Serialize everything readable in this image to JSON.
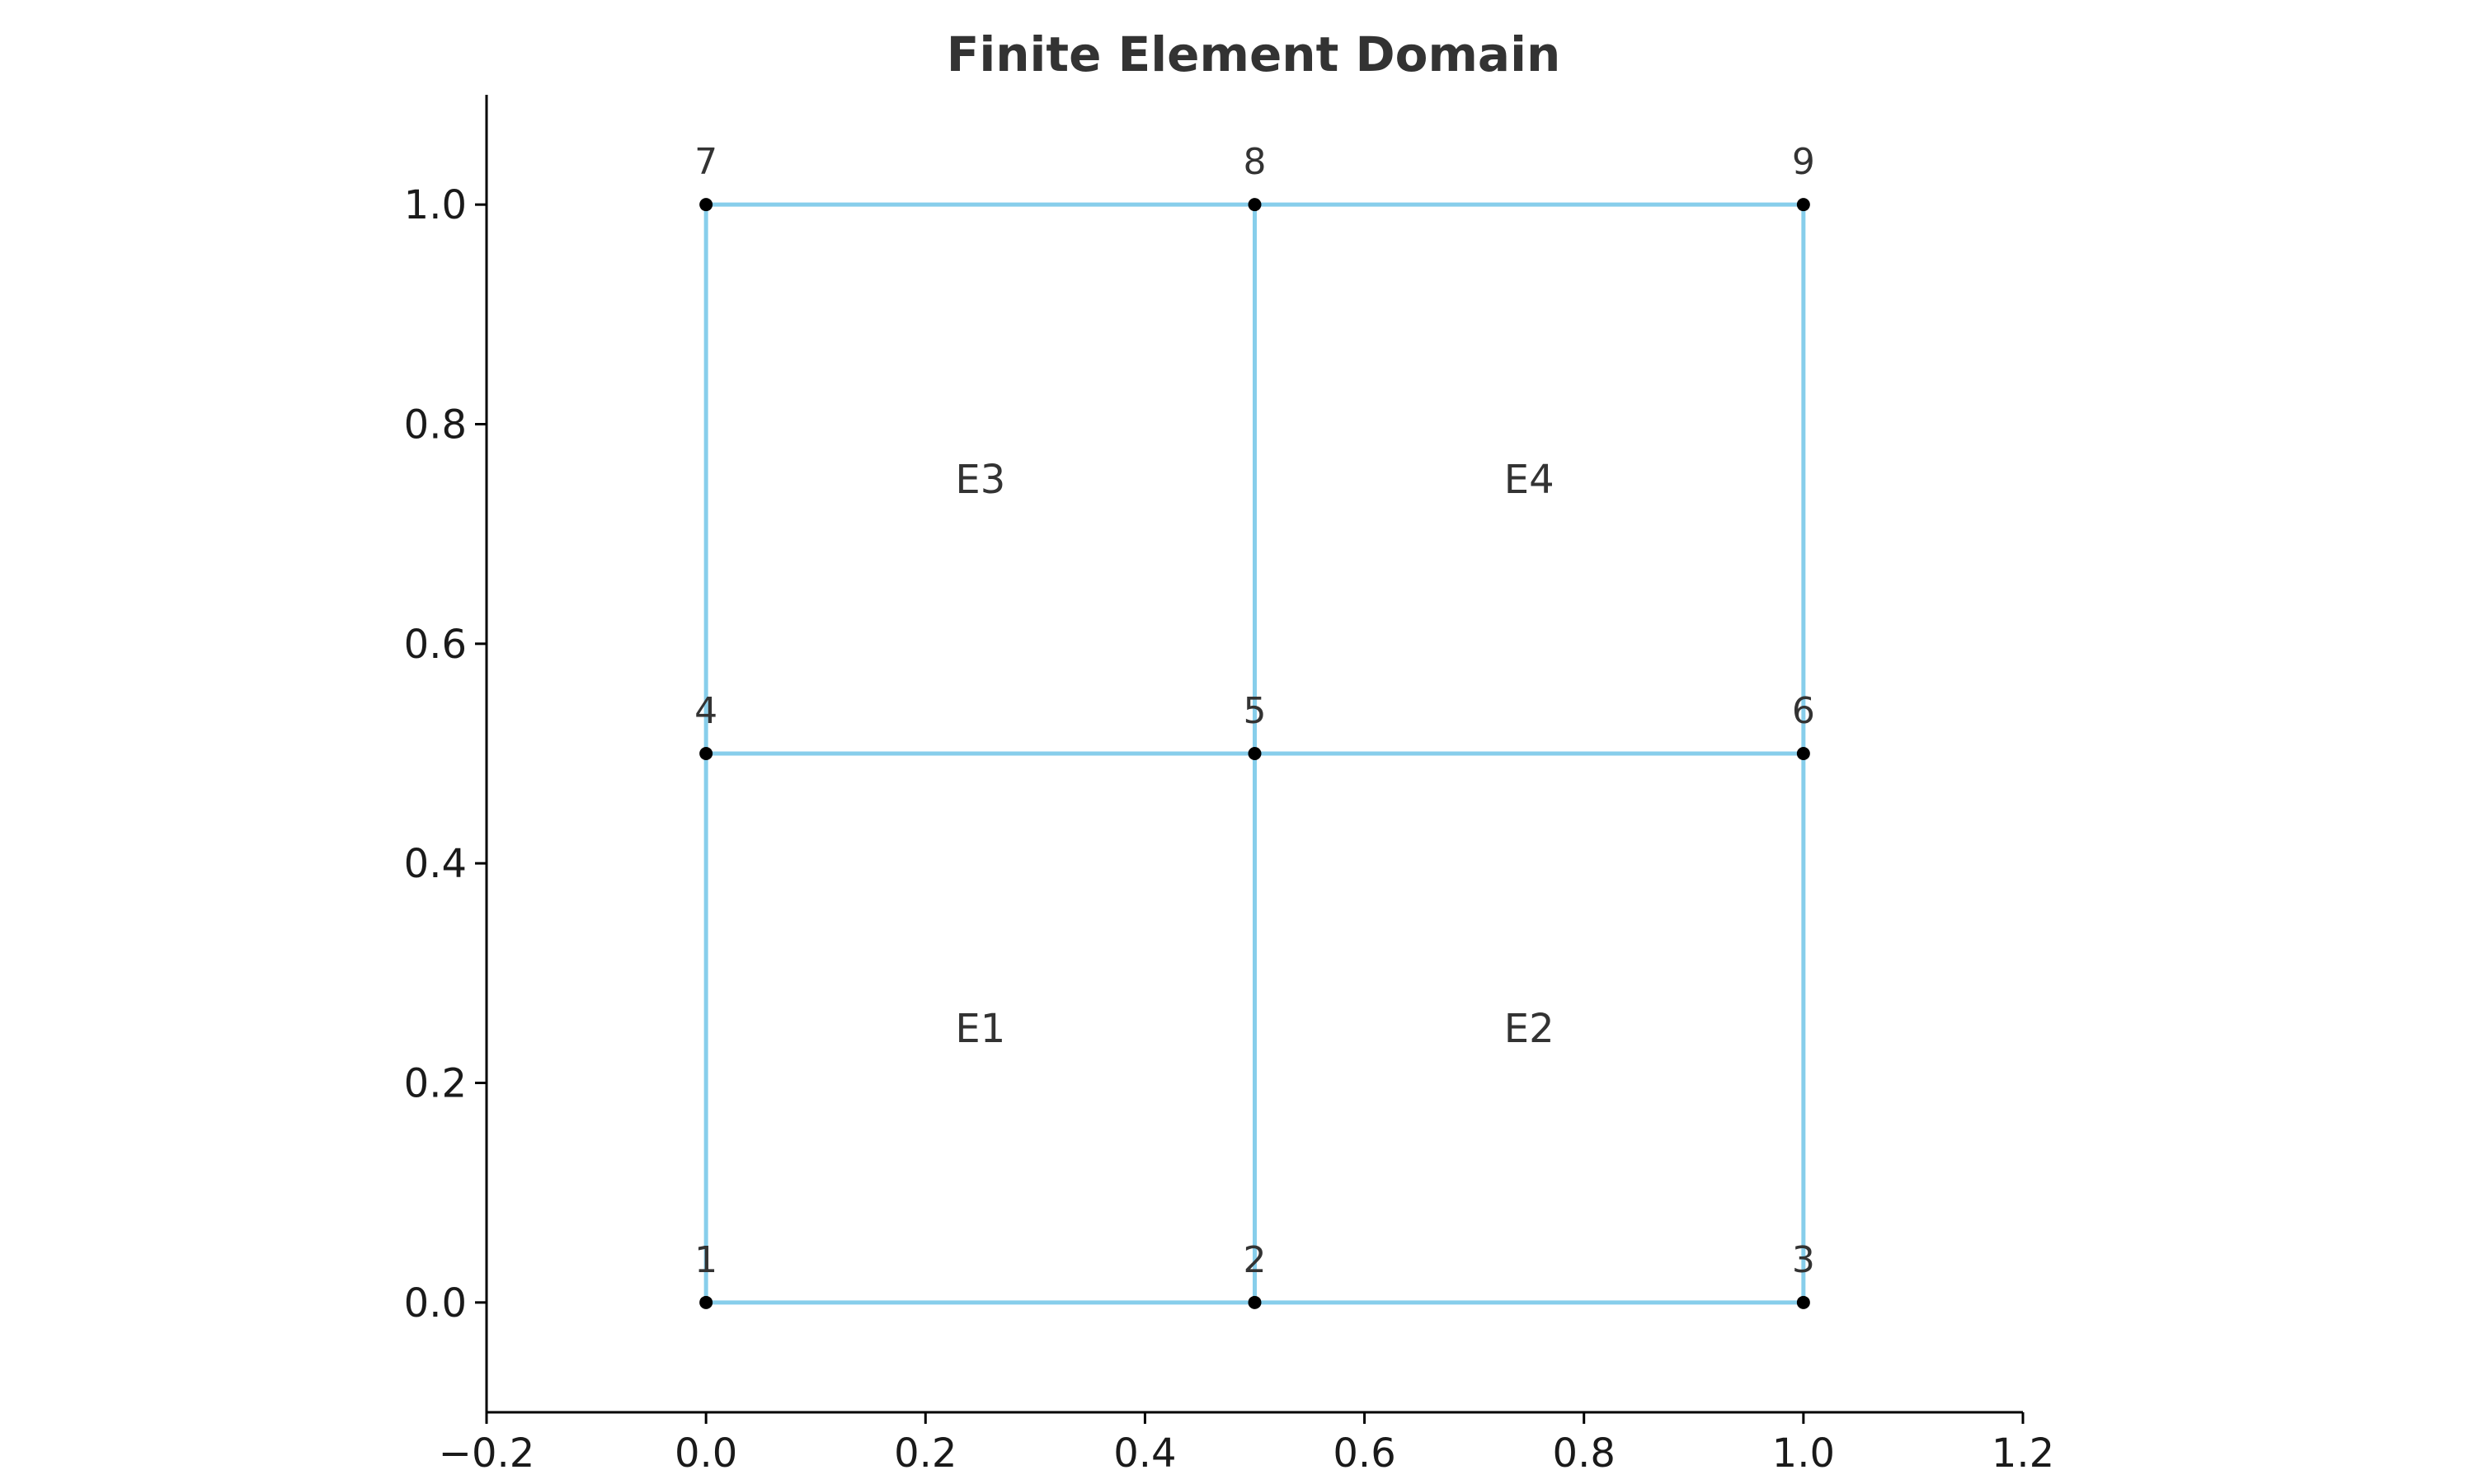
{
  "chart_data": {
    "type": "scatter",
    "title": "Finite Element Domain",
    "xlabel": "",
    "ylabel": "",
    "xlim": [
      -0.2,
      1.2
    ],
    "ylim": [
      -0.1,
      1.1
    ],
    "xticks": [
      -0.2,
      0.0,
      0.2,
      0.4,
      0.6,
      0.8,
      1.0,
      1.2
    ],
    "xtick_labels": [
      "−0.2",
      "0.0",
      "0.2",
      "0.4",
      "0.6",
      "0.8",
      "1.0",
      "1.2"
    ],
    "yticks": [
      0.0,
      0.2,
      0.4,
      0.6,
      0.8,
      1.0
    ],
    "ytick_labels": [
      "0.0",
      "0.2",
      "0.4",
      "0.6",
      "0.8",
      "1.0"
    ],
    "grid": false,
    "edge_color": "#87CEEB",
    "node_color": "#000000",
    "nodes": [
      {
        "label": "1",
        "x": 0.0,
        "y": 0.0
      },
      {
        "label": "2",
        "x": 0.5,
        "y": 0.0
      },
      {
        "label": "3",
        "x": 1.0,
        "y": 0.0
      },
      {
        "label": "4",
        "x": 0.0,
        "y": 0.5
      },
      {
        "label": "5",
        "x": 0.5,
        "y": 0.5
      },
      {
        "label": "6",
        "x": 1.0,
        "y": 0.5
      },
      {
        "label": "7",
        "x": 0.0,
        "y": 1.0
      },
      {
        "label": "8",
        "x": 0.5,
        "y": 1.0
      },
      {
        "label": "9",
        "x": 1.0,
        "y": 1.0
      }
    ],
    "elements": [
      {
        "label": "E1",
        "nodes": [
          "1",
          "2",
          "5",
          "4"
        ],
        "cx": 0.25,
        "cy": 0.25
      },
      {
        "label": "E2",
        "nodes": [
          "2",
          "3",
          "6",
          "5"
        ],
        "cx": 0.75,
        "cy": 0.25
      },
      {
        "label": "E3",
        "nodes": [
          "4",
          "5",
          "8",
          "7"
        ],
        "cx": 0.25,
        "cy": 0.75
      },
      {
        "label": "E4",
        "nodes": [
          "5",
          "6",
          "9",
          "8"
        ],
        "cx": 0.75,
        "cy": 0.75
      }
    ]
  }
}
